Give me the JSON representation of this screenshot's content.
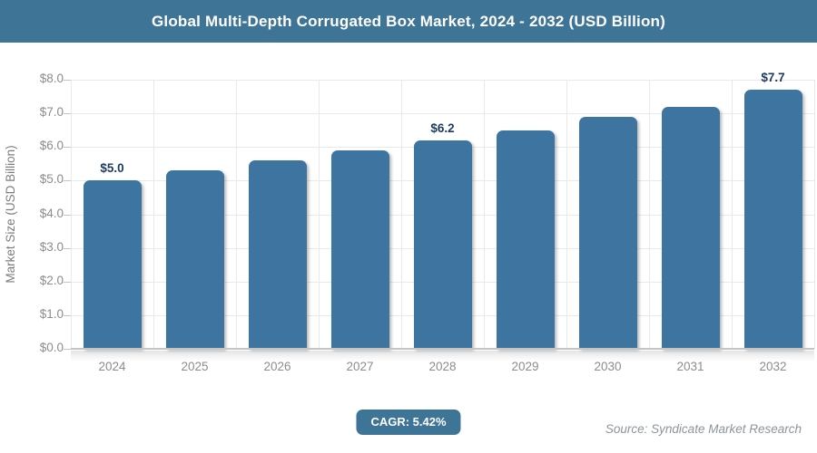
{
  "header": {
    "title": "Global Multi-Depth Corrugated Box Market, 2024 - 2032 (USD Billion)"
  },
  "chart_data": {
    "type": "bar",
    "title": "Global Multi-Depth Corrugated Box Market, 2024 - 2032 (USD Billion)",
    "categories": [
      "2024",
      "2025",
      "2026",
      "2027",
      "2028",
      "2029",
      "2030",
      "2031",
      "2032"
    ],
    "values": [
      5.0,
      5.3,
      5.6,
      5.9,
      6.2,
      6.5,
      6.9,
      7.2,
      7.7
    ],
    "bar_labels": [
      "$5.0",
      "",
      "",
      "",
      "$6.2",
      "",
      "",
      "",
      "$7.7"
    ],
    "xlabel": "",
    "ylabel": "Market Size (USD Billion)",
    "ylim": [
      0,
      8
    ],
    "ytick_step": 1,
    "ytick_prefix": "$",
    "grid": true,
    "legend": "none"
  },
  "footer": {
    "cagr_badge": "CAGR: 5.42%",
    "source": "Source: Syndicate Market Research"
  },
  "colors": {
    "header_bg": "#3e7495",
    "bar": "#3d74a0",
    "badge_bg": "#3e7495",
    "bar_label": "#1e3a5f",
    "axis_text": "#8c8c8c",
    "grid": "#e9e9e9",
    "axis_line": "#c4c4c4",
    "source_text": "#8b959b"
  }
}
